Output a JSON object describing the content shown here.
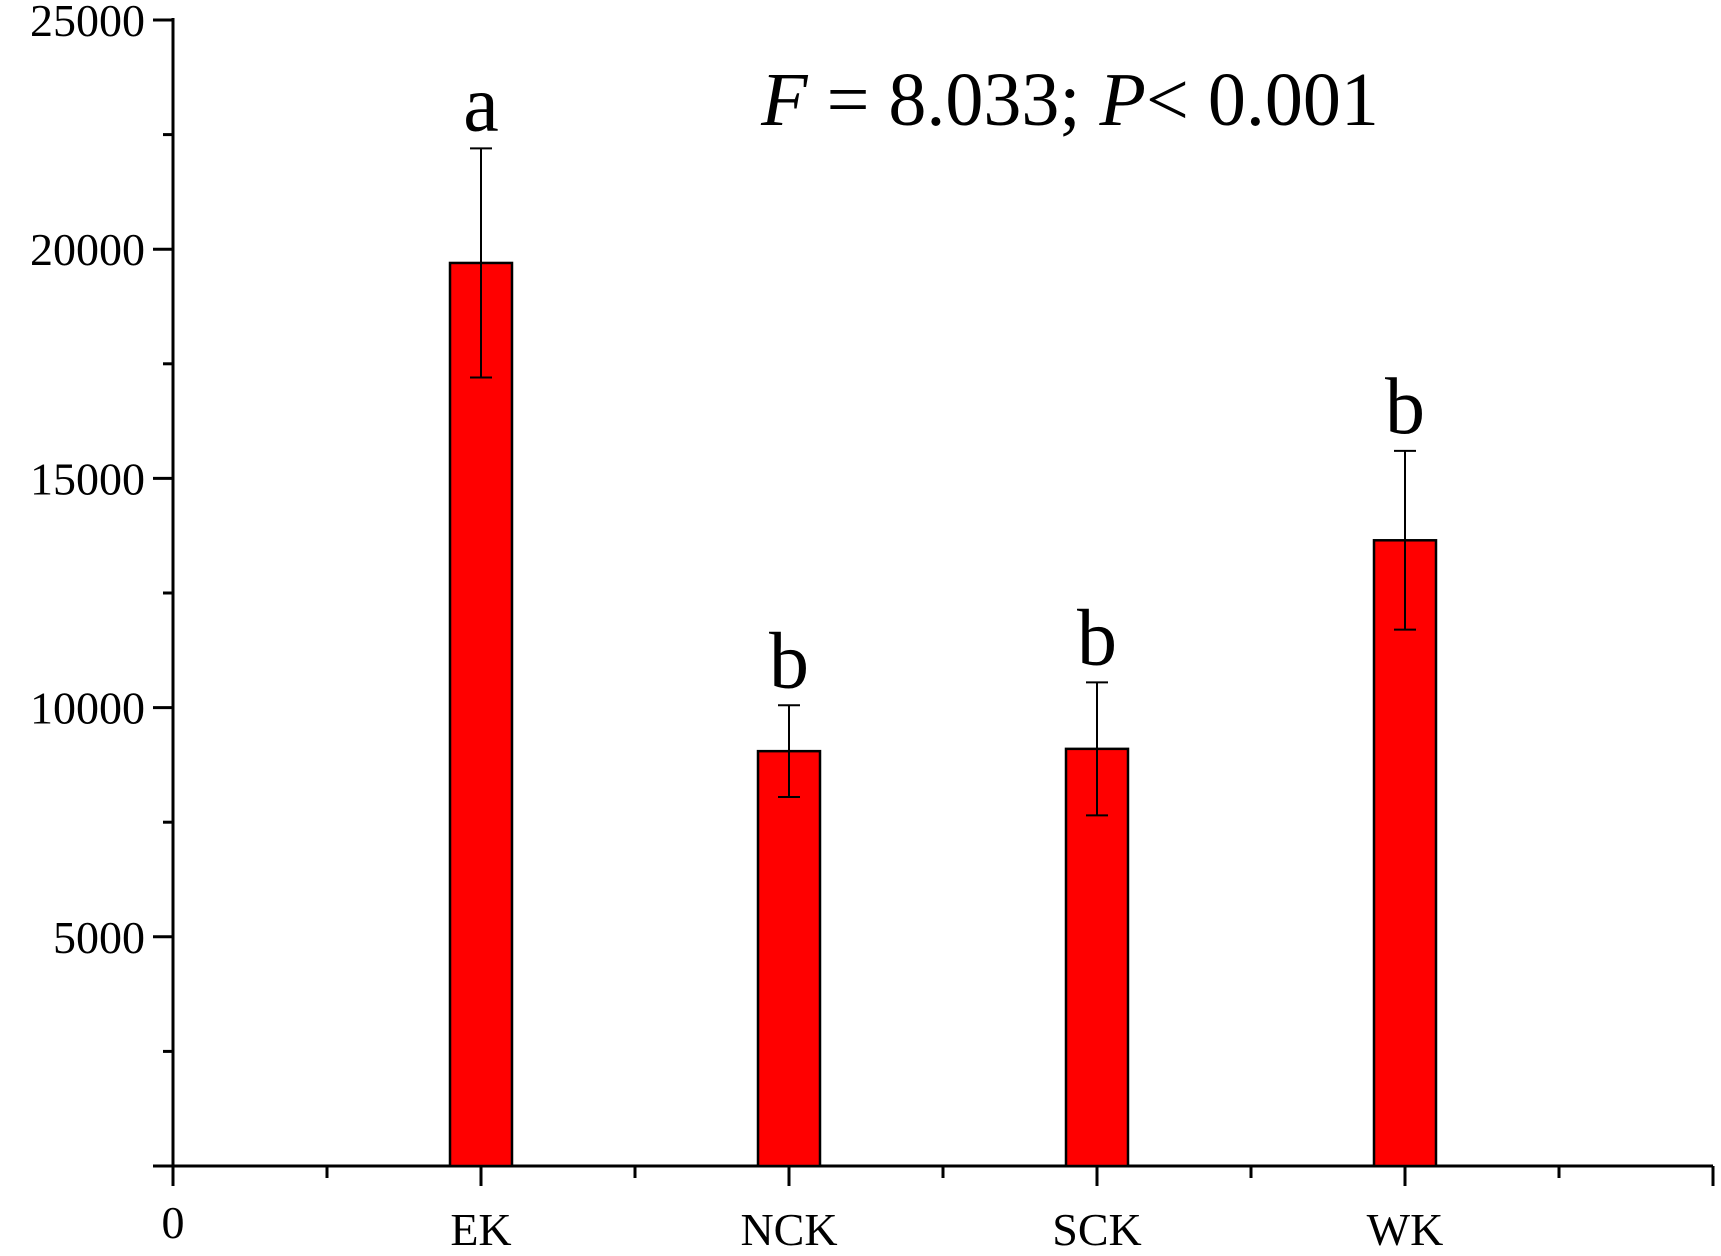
{
  "chart_data": {
    "type": "bar",
    "title": "",
    "xlabel": "",
    "ylabel": "",
    "categories": [
      "EK",
      "NCK",
      "SCK",
      "WK"
    ],
    "x_origin_label": "0",
    "values": [
      19700,
      9050,
      9100,
      13650
    ],
    "error": [
      2500,
      1000,
      1450,
      1950
    ],
    "significance_letters": [
      "a",
      "b",
      "b",
      "b"
    ],
    "ylim": [
      0,
      25000
    ],
    "yticks": [
      5000,
      10000,
      15000,
      20000,
      25000
    ],
    "ytick_labels": [
      "5000",
      "10000",
      "15000",
      "20000",
      "25000"
    ],
    "bar_color": "#ff0000",
    "grid": false,
    "annotation": {
      "F_symbol": "F",
      "F_text": " = 8.033; ",
      "P_symbol": "P",
      "P_text": "< 0.001"
    }
  }
}
